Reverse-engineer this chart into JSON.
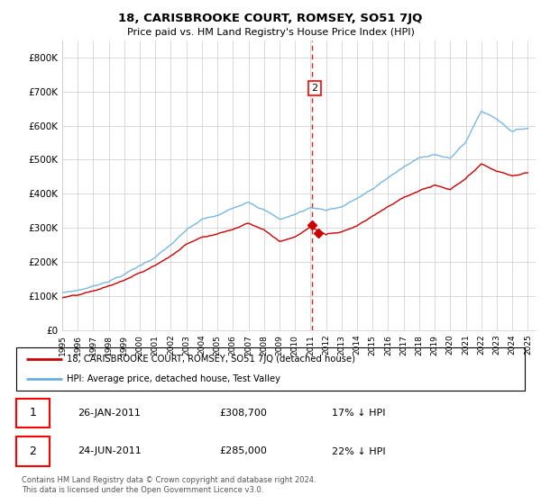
{
  "title": "18, CARISBROOKE COURT, ROMSEY, SO51 7JQ",
  "subtitle": "Price paid vs. HM Land Registry's House Price Index (HPI)",
  "legend_line1": "18, CARISBROOKE COURT, ROMSEY, SO51 7JQ (detached house)",
  "legend_line2": "HPI: Average price, detached house, Test Valley",
  "transaction1_date": "26-JAN-2011",
  "transaction1_price": "£308,700",
  "transaction1_hpi": "17% ↓ HPI",
  "transaction2_date": "24-JUN-2011",
  "transaction2_price": "£285,000",
  "transaction2_hpi": "22% ↓ HPI",
  "footnote": "Contains HM Land Registry data © Crown copyright and database right 2024.\nThis data is licensed under the Open Government Licence v3.0.",
  "hpi_color": "#6ab0e0",
  "price_color": "#cc0000",
  "vline_color": "#cc0000",
  "ylim": [
    0,
    850000
  ],
  "yticks": [
    0,
    100000,
    200000,
    300000,
    400000,
    500000,
    600000,
    700000,
    800000
  ],
  "ytick_labels": [
    "£0",
    "£100K",
    "£200K",
    "£300K",
    "£400K",
    "£500K",
    "£600K",
    "£700K",
    "£800K"
  ],
  "year_start": 1995,
  "year_end": 2025,
  "key_years_hpi": [
    1995,
    1996,
    1997,
    1998,
    1999,
    2000,
    2001,
    2002,
    2003,
    2004,
    2005,
    2006,
    2007,
    2008,
    2009,
    2010,
    2011,
    2012,
    2013,
    2014,
    2015,
    2016,
    2017,
    2018,
    2019,
    2020,
    2021,
    2022,
    2023,
    2024,
    2025
  ],
  "key_vals_hpi": [
    110000,
    118000,
    130000,
    148000,
    168000,
    193000,
    220000,
    255000,
    295000,
    325000,
    335000,
    355000,
    380000,
    360000,
    330000,
    345000,
    365000,
    360000,
    370000,
    395000,
    420000,
    455000,
    485000,
    510000,
    525000,
    510000,
    560000,
    650000,
    630000,
    595000,
    605000
  ],
  "key_years_red": [
    1995,
    1996,
    1997,
    1998,
    1999,
    2000,
    2001,
    2002,
    2003,
    2004,
    2005,
    2006,
    2007,
    2008,
    2009,
    2010,
    2011,
    2012,
    2013,
    2014,
    2015,
    2016,
    2017,
    2018,
    2019,
    2020,
    2021,
    2022,
    2023,
    2024,
    2025
  ],
  "key_vals_red": [
    95000,
    100000,
    110000,
    125000,
    142000,
    162000,
    185000,
    213000,
    247000,
    272000,
    282000,
    297000,
    318000,
    298000,
    265000,
    278000,
    308700,
    285000,
    295000,
    315000,
    345000,
    375000,
    400000,
    420000,
    435000,
    420000,
    450000,
    490000,
    470000,
    455000,
    465000
  ],
  "t1_year": 2011.07,
  "t1_price": 308700,
  "t2_year": 2011.5,
  "t2_price": 285000,
  "vline_year": 2011.07
}
